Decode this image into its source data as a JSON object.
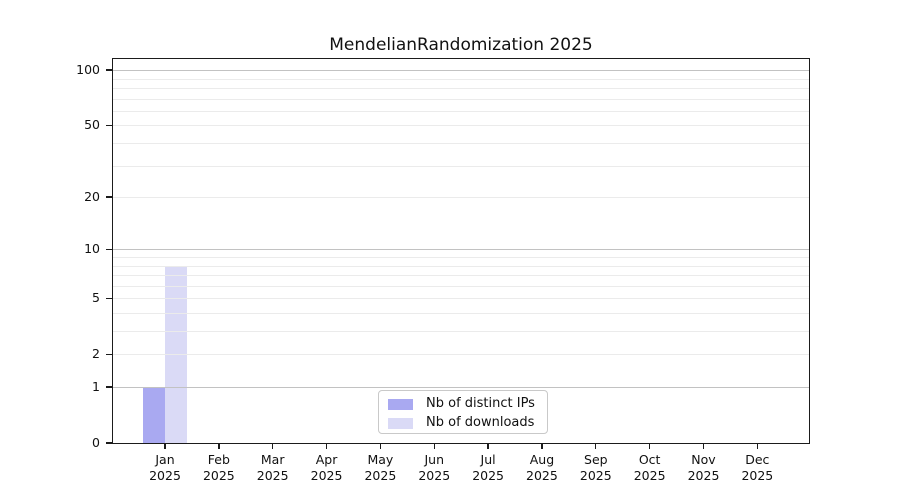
{
  "title": "MendelianRandomization 2025",
  "chart_data": {
    "type": "bar",
    "title": "MendelianRandomization 2025",
    "categories": [
      "Jan",
      "Feb",
      "Mar",
      "Apr",
      "May",
      "Jun",
      "Jul",
      "Aug",
      "Sep",
      "Oct",
      "Nov",
      "Dec"
    ],
    "category_subline": "2025",
    "series": [
      {
        "name": "Nb of distinct IPs",
        "color": "#a9a9f1",
        "values": [
          1,
          0,
          0,
          0,
          0,
          0,
          0,
          0,
          0,
          0,
          0,
          0
        ]
      },
      {
        "name": "Nb of downloads",
        "color": "#dadaf6",
        "values": [
          8,
          0,
          0,
          0,
          0,
          0,
          0,
          0,
          0,
          0,
          0,
          0
        ]
      }
    ],
    "y_axis": {
      "scale": "log10(value+1)",
      "major_ticks": [
        0,
        1,
        2,
        5,
        10,
        20,
        50,
        100
      ],
      "decade_gridlines": [
        1,
        10,
        100
      ],
      "minor_gridlines": [
        3,
        4,
        6,
        7,
        8,
        9,
        30,
        40,
        60,
        70,
        80,
        90
      ],
      "ylim": [
        0,
        115
      ]
    },
    "xlabel": "",
    "ylabel": "",
    "grid": "horizontal",
    "legend": {
      "position": "inside-bottom-center",
      "entries": [
        "Nb of distinct IPs",
        "Nb of downloads"
      ]
    }
  },
  "colors": {
    "distinct_ips_bar": "#a9a9f1",
    "downloads_bar": "#dadaf6",
    "decade_gridline": "#c2c2c2",
    "minor_gridline": "#ebebeb",
    "spine": "#1b1b1b",
    "background": "#ffffff"
  }
}
